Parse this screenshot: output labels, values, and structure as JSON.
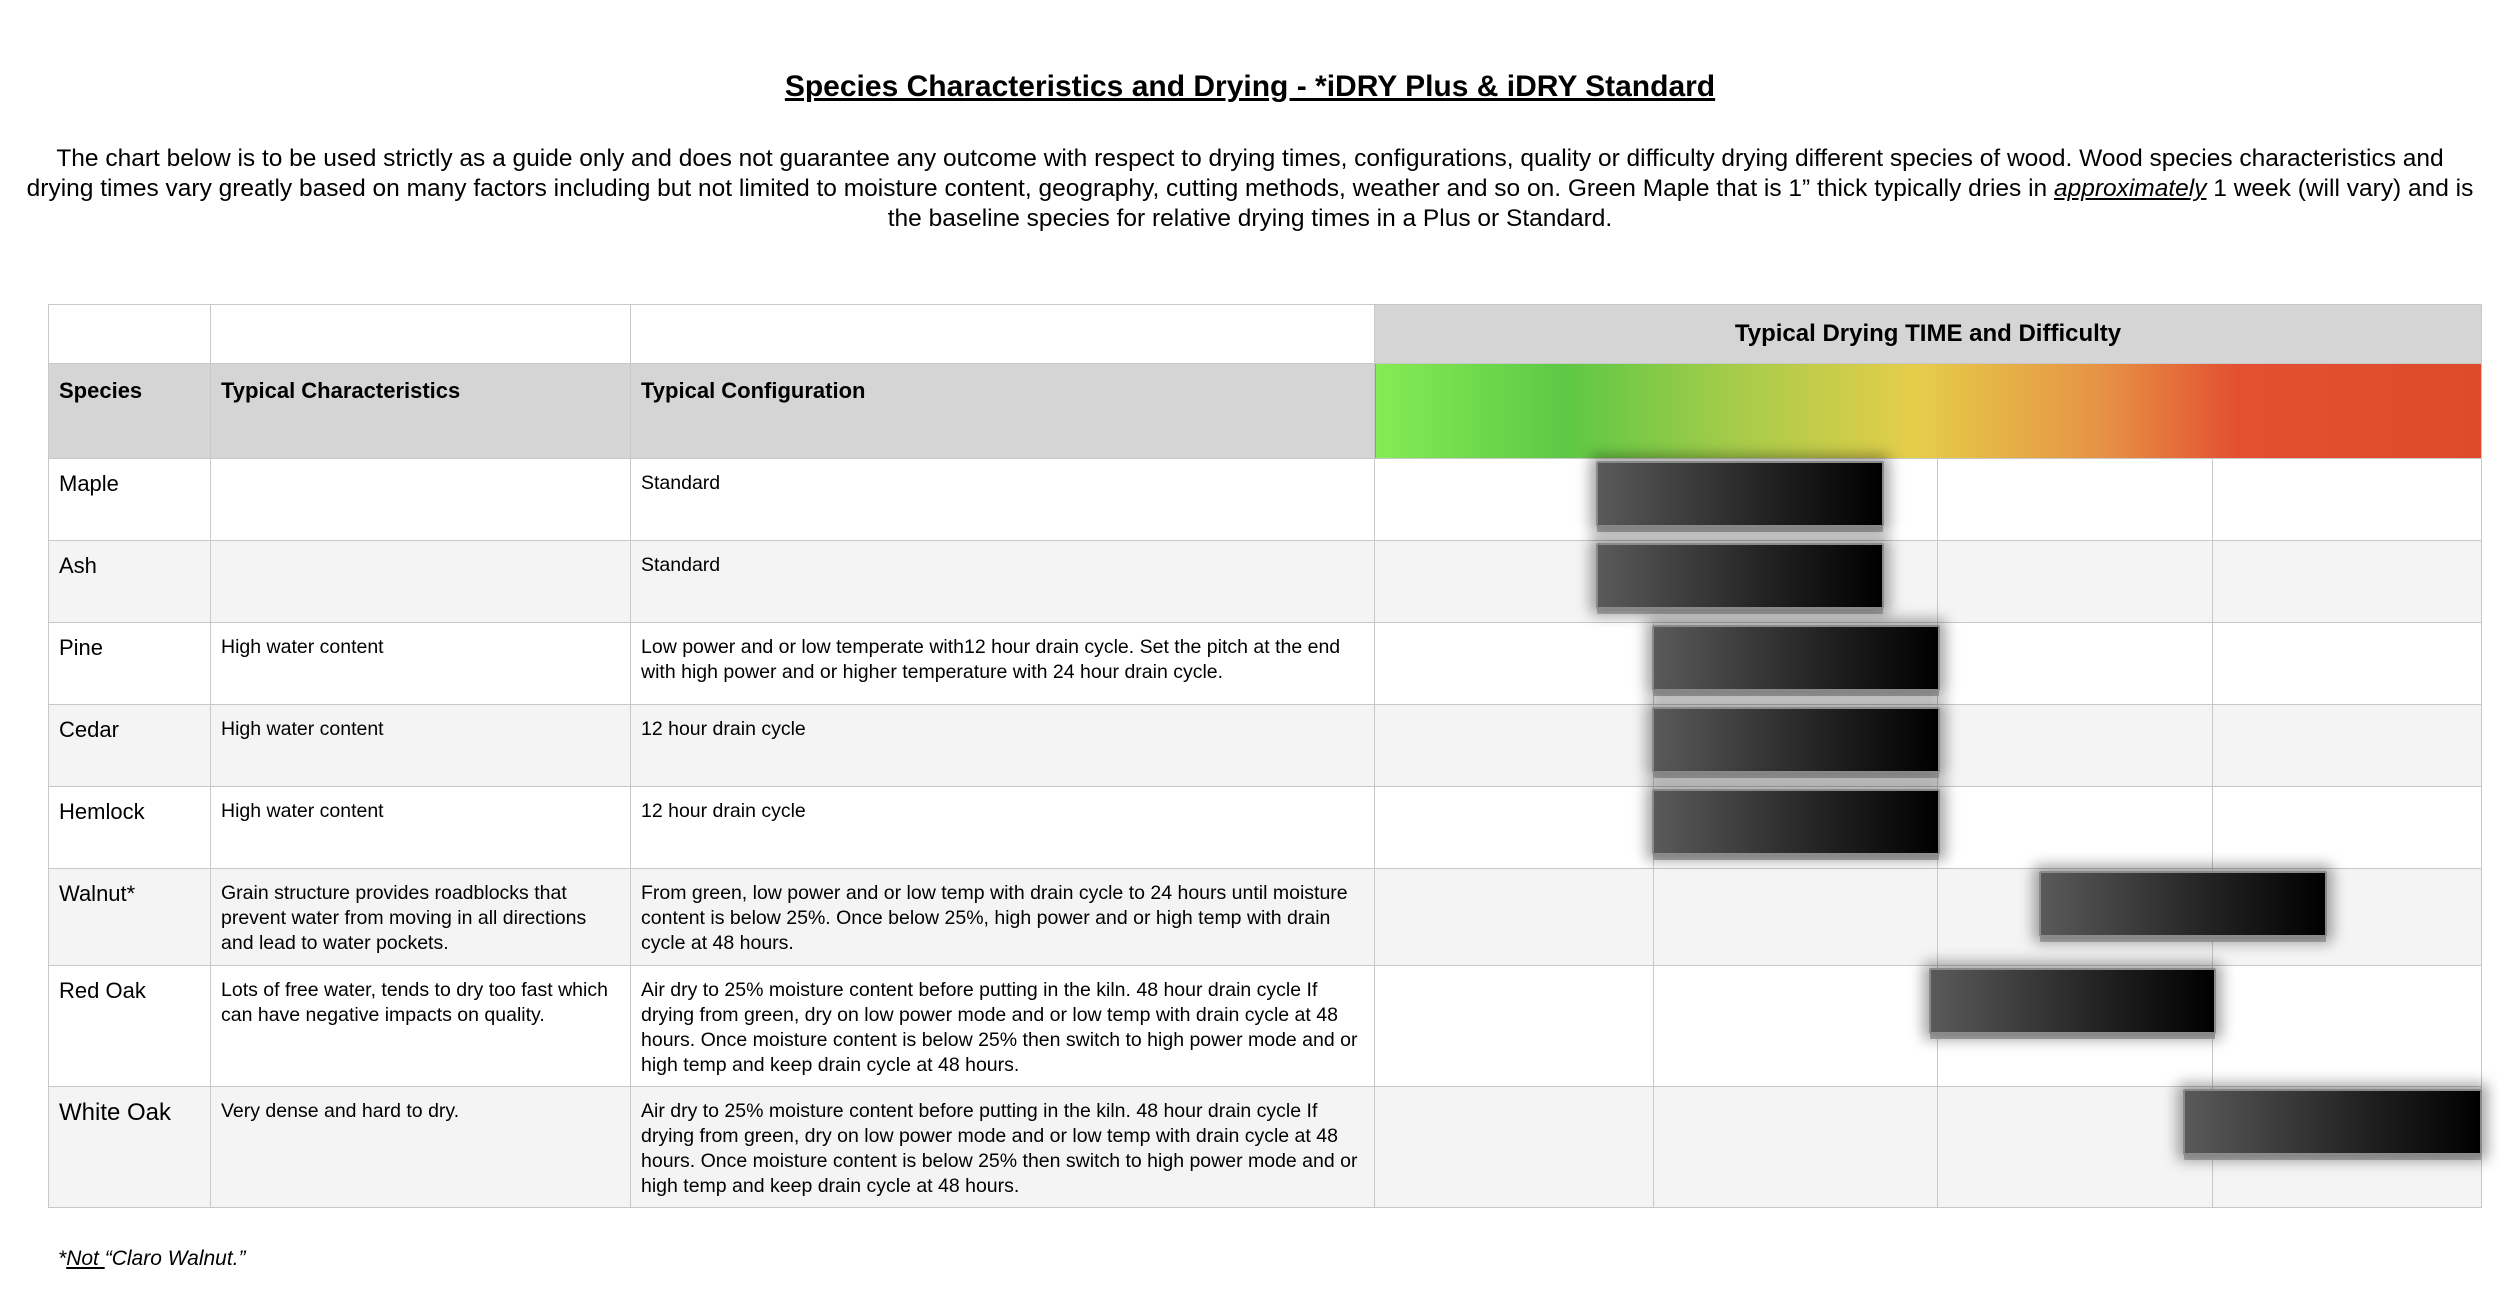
{
  "title": "Species Characteristics and Drying - *iDRY Plus & iDRY Standard",
  "intro": {
    "before": "The chart below is to be used strictly as a guide only and does not guarantee any outcome with respect to drying times, configurations, quality or difficulty drying different species of wood. Wood species characteristics and drying times vary greatly based on many factors including but not limited to moisture content, geography, cutting methods, weather and so on. Green Maple that is 1” thick typically dries in ",
    "emph": "approximately",
    "after": " 1 week (will vary) and is the baseline species for relative drying times in a Plus or Standard."
  },
  "table": {
    "drying_header": "Typical Drying TIME and Difficulty",
    "col_species": "Species",
    "col_characteristics": "Typical Characteristics",
    "col_configuration": "Typical Configuration",
    "gradient_colors": [
      "#86ec55",
      "#5cc845",
      "#a8cc4a",
      "#e6cd4a",
      "#e69145",
      "#e44f32",
      "#dd4b2a"
    ],
    "rows": [
      {
        "species": "Maple",
        "characteristics": "",
        "configuration": "Standard",
        "drying_start": 0.2,
        "drying_end": 0.46
      },
      {
        "species": "Ash",
        "characteristics": "",
        "configuration": "Standard",
        "drying_start": 0.2,
        "drying_end": 0.46
      },
      {
        "species": "Pine",
        "characteristics": "High water content",
        "configuration": "Low power and or low temperate with12 hour drain cycle. Set the pitch at the end with high power and or higher temperature with 24 hour drain cycle.",
        "drying_start": 0.25,
        "drying_end": 0.51
      },
      {
        "species": "Cedar",
        "characteristics": "High water content",
        "configuration": "12 hour drain cycle",
        "drying_start": 0.25,
        "drying_end": 0.51
      },
      {
        "species": "Hemlock",
        "characteristics": "High water content",
        "configuration": "12 hour drain cycle",
        "drying_start": 0.25,
        "drying_end": 0.51
      },
      {
        "species": "Walnut*",
        "characteristics": "Grain structure provides roadblocks that prevent water from moving in all directions and lead to water pockets.",
        "configuration": "From green, low power and or low temp with drain cycle to 24 hours until moisture content is below 25%. Once below 25%, high power and or high temp with drain cycle at 48 hours.",
        "drying_start": 0.6,
        "drying_end": 0.86
      },
      {
        "species": "Red Oak",
        "characteristics": "Lots of free water, tends to dry too fast which can have negative impacts on quality.",
        "configuration": "Air dry to 25% moisture content before putting in the kiln. 48 hour drain cycle If drying from green, dry on low power mode and or low temp with drain cycle at 48 hours. Once moisture content is below 25% then switch to high power mode and or high temp and keep drain cycle at 48 hours.",
        "drying_start": 0.5,
        "drying_end": 0.76
      },
      {
        "species": "White Oak",
        "characteristics": "Very dense and hard to dry.",
        "configuration": "Air dry to 25% moisture content before putting in the kiln. 48 hour drain cycle If drying from green, dry on low power mode and or low temp with drain cycle at 48 hours. Once moisture content is below 25% then switch to high power mode and or high temp and keep drain cycle at 48 hours.",
        "drying_start": 0.73,
        "drying_end": 1.0
      }
    ]
  },
  "footnote": {
    "star": "*",
    "not": "Not ",
    "rest": "“Claro Walnut.”"
  }
}
